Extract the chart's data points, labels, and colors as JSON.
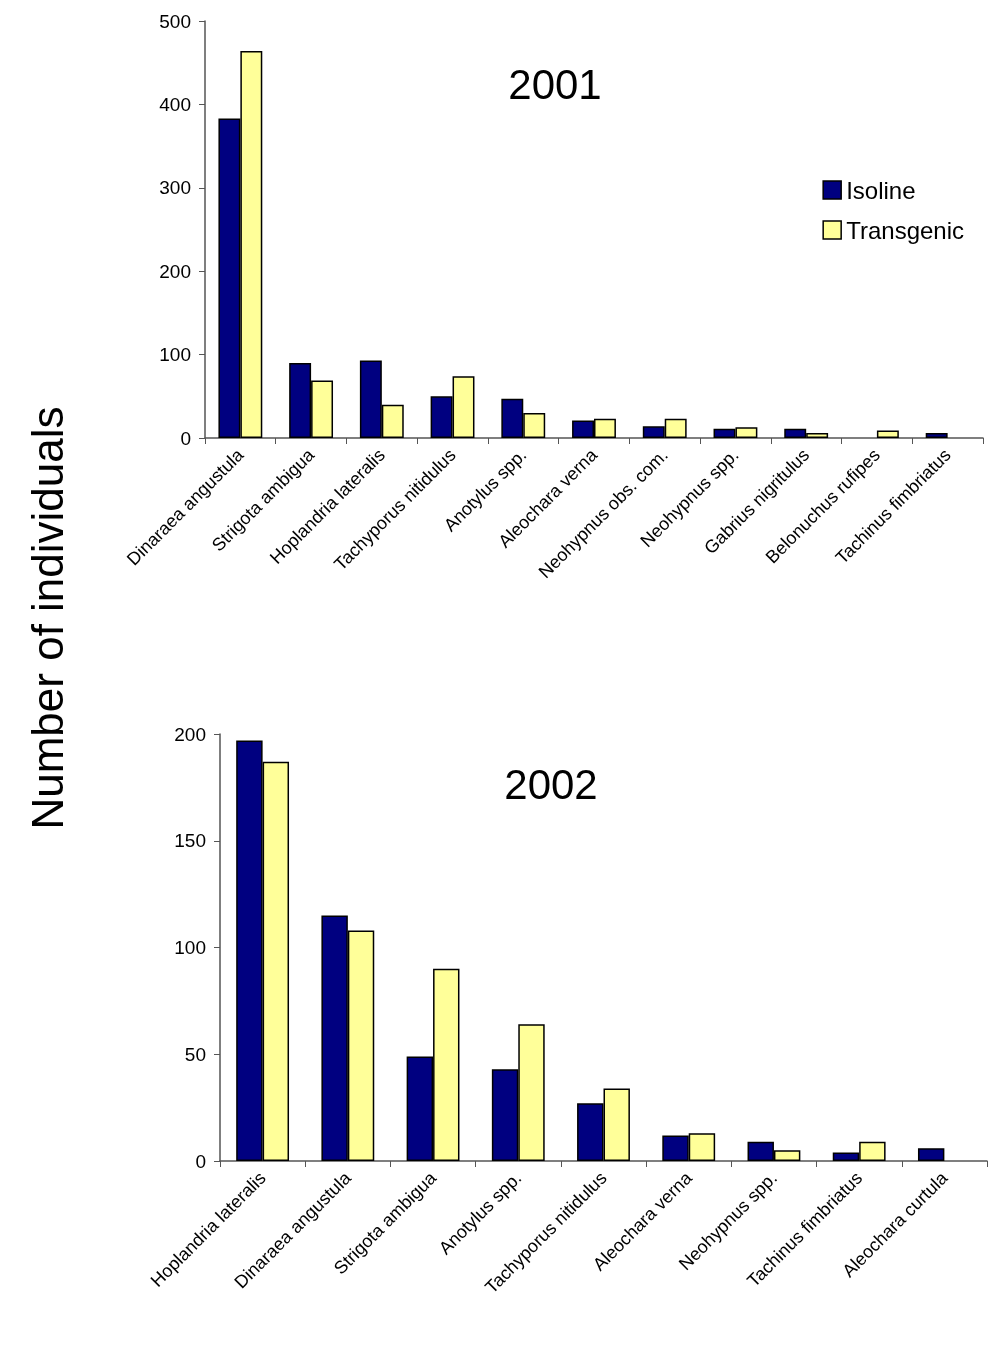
{
  "chart_data": [
    {
      "type": "bar",
      "title": "2001",
      "ylabel": "Number of individuals",
      "categories": [
        "Dinaraea angustula",
        "Strigota ambigua",
        "Hoplandria lateralis",
        "Tachyporus nitidulus",
        "Anotylus spp.",
        "Aleochara verna",
        "Neohypnus obs. com.",
        "Neohypnus spp.",
        "Gabrius nigritulus",
        "Belonuchus rufipes",
        "Tachinus fimbriatus"
      ],
      "series": [
        {
          "name": "Isoline",
          "color": "#000080",
          "values": [
            383,
            90,
            93,
            50,
            47,
            21,
            14,
            11,
            11,
            null,
            6
          ]
        },
        {
          "name": "Transgenic",
          "color": "#ffff99",
          "values": [
            464,
            69,
            40,
            74,
            30,
            23,
            23,
            13,
            6,
            9,
            null
          ]
        }
      ],
      "ylim": [
        0,
        500
      ],
      "yticks": [
        0,
        100,
        200,
        300,
        400,
        500
      ],
      "grid": false,
      "legend": "top right"
    },
    {
      "type": "bar",
      "title": "2002",
      "categories": [
        "Hoplandria lateralis",
        "Dinaraea angustula",
        "Strigota ambigua",
        "Anotylus spp.",
        "Tachyporus nitidulus",
        "Aleochara verna",
        "Neohypnus spp.",
        "Tachinus fimbriatus",
        "Aleochara curtula"
      ],
      "series": [
        {
          "color": "#000080",
          "values": [
            197,
            115,
            49,
            43,
            27,
            12,
            9,
            4,
            6
          ]
        },
        {
          "color": "#ffff99",
          "values": [
            187,
            108,
            90,
            64,
            34,
            13,
            5,
            9,
            null
          ]
        }
      ],
      "ylim": [
        0,
        200
      ],
      "yticks": [
        0,
        50,
        100,
        150,
        200
      ],
      "grid": false,
      "legend": false
    }
  ]
}
